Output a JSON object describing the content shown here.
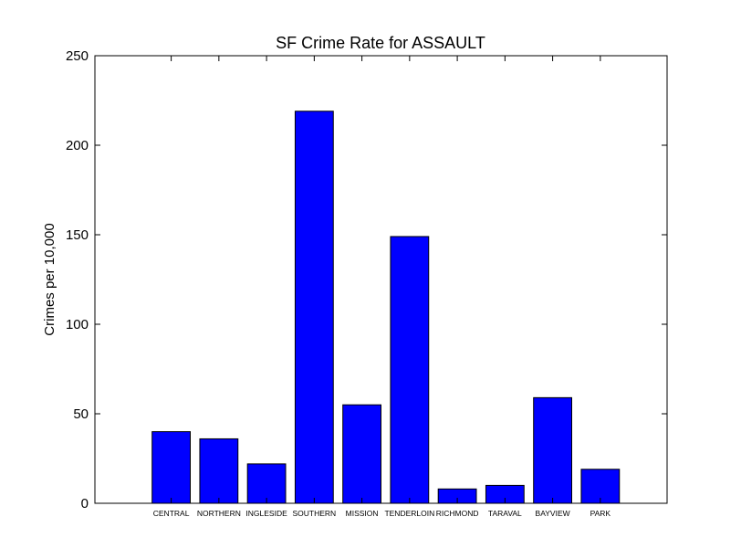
{
  "chart_data": {
    "type": "bar",
    "title": "SF Crime Rate for ASSAULT",
    "xlabel": "",
    "ylabel": "Crimes per 10,000",
    "categories": [
      "CENTRAL",
      "NORTHERN",
      "INGLESIDE",
      "SOUTHERN",
      "MISSION",
      "TENDERLOIN",
      "RICHMOND",
      "TARAVAL",
      "BAYVIEW",
      "PARK"
    ],
    "values": [
      40,
      36,
      22,
      219,
      55,
      149,
      8,
      10,
      59,
      19
    ],
    "ylim": [
      0,
      250
    ],
    "yticks": [
      0,
      50,
      100,
      150,
      200,
      250
    ],
    "yticks_labels": [
      "0",
      "50",
      "100",
      "150",
      "200",
      "250"
    ],
    "xlim": [
      0,
      12
    ],
    "bar_positions": [
      1.6,
      2.6,
      3.6,
      4.6,
      5.6,
      6.6,
      7.6,
      8.6,
      9.6,
      10.6
    ],
    "bar_width": 0.8,
    "grid": false,
    "bar_color": "#0000ff",
    "edge_color": "#000000"
  }
}
